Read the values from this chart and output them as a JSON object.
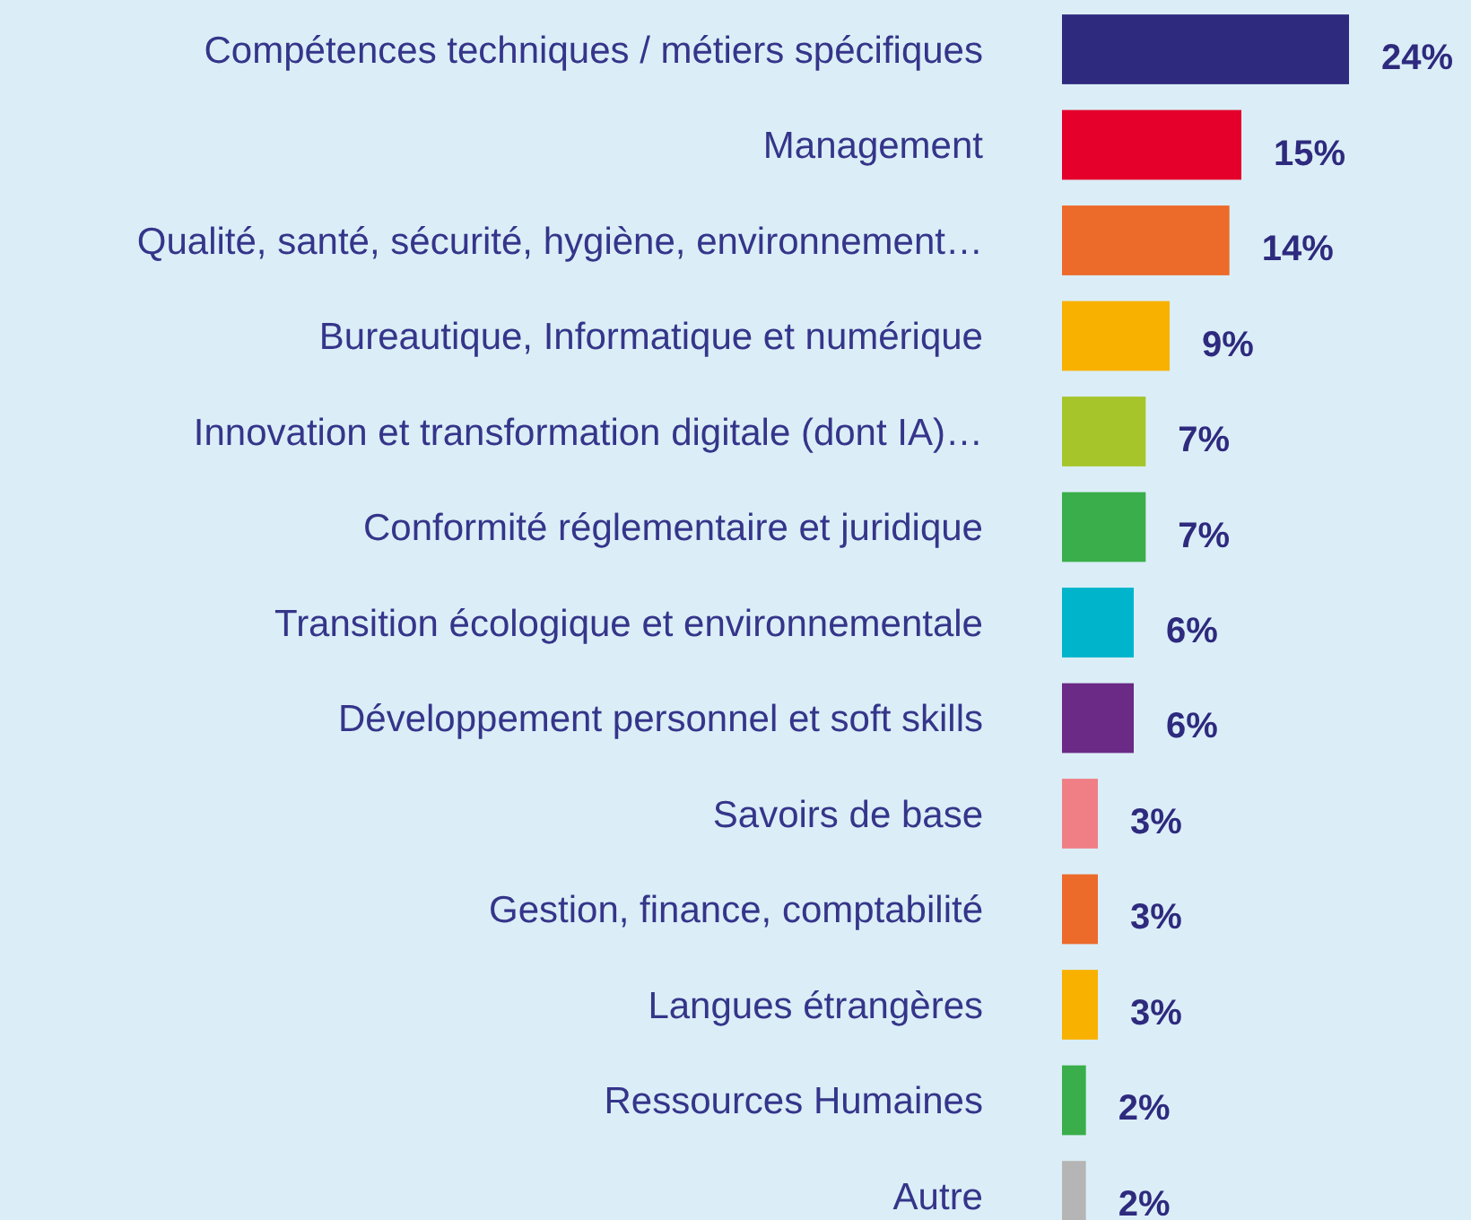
{
  "chart_data": {
    "type": "bar",
    "orientation": "horizontal",
    "categories": [
      "Compétences techniques / métiers spécifiques",
      "Management",
      "Qualité, santé, sécurité, hygiène, environnement…",
      "Bureautique, Informatique et numérique",
      "Innovation et transformation digitale (dont IA)…",
      "Conformité réglementaire et juridique",
      "Transition écologique et environnementale",
      "Développement personnel et soft skills",
      "Savoirs de base",
      "Gestion, finance, comptabilité",
      "Langues étrangères",
      "Ressources Humaines",
      "Autre"
    ],
    "values": [
      24,
      15,
      14,
      9,
      7,
      7,
      6,
      6,
      3,
      3,
      3,
      2,
      2
    ],
    "colors": [
      "#2e2a7e",
      "#e4002b",
      "#ec6a2a",
      "#f9b100",
      "#a6c52a",
      "#3aae4a",
      "#00b4cc",
      "#6a2a86",
      "#ef7f85",
      "#ec6a2a",
      "#f9b100",
      "#3aae4a",
      "#b5b5b5"
    ],
    "value_labels": [
      "24%",
      "15%",
      "14%",
      "9%",
      "7%",
      "7%",
      "6%",
      "6%",
      "3%",
      "3%",
      "3%",
      "2%",
      "2%"
    ]
  }
}
